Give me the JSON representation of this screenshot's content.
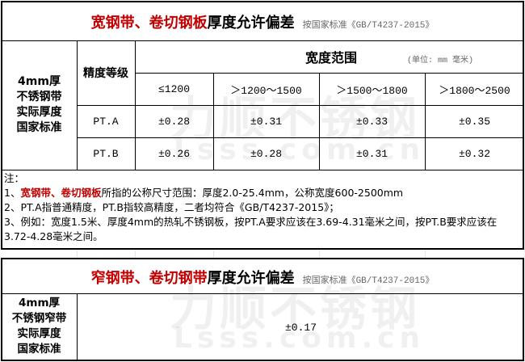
{
  "table1": {
    "title_red": "宽钢带、卷切钢板",
    "title_black": "厚度允许偏差",
    "standard": "按国家标准《GB/T4237-2015》",
    "left_label": [
      "4mm厚",
      "不锈钢带",
      "实际厚度",
      "国家标准"
    ],
    "grade_header": "精度等级",
    "width_header": "宽度范围",
    "unit": "(单位: mm 毫米)",
    "columns": [
      "≤1200",
      "＞1200～1500",
      "＞1500～1800",
      "＞1800～2500"
    ],
    "rows": [
      {
        "grade": "PT.A",
        "values": [
          "±0.28",
          "±0.31",
          "±0.33",
          "±0.35"
        ]
      },
      {
        "grade": "PT.B",
        "values": [
          "±0.26",
          "±0.28",
          "±0.31",
          "±0.32"
        ]
      }
    ]
  },
  "notes": {
    "heading": "注：",
    "n1_prefix": "1、",
    "n1_red": "宽钢带、卷切钢板",
    "n1_rest": "所指的公称尺寸范围：厚度2.0-25.4mm，公称宽度600-2500mm",
    "n2": "2、PT.A指普通精度，PT.B指较高精度，二者均符合《GB/T4237-2015》；",
    "n3": "3、例如：宽度1.5米、厚度4mm的热轧不锈钢板，按PT.A要求应该在3.69-4.31毫米之间，按PT.B要求应该在3.72-4.28毫米之间。"
  },
  "table2": {
    "title_red": "窄钢带、卷切钢带",
    "title_black": "厚度允许偏差",
    "standard": "按国家标准《GB/T4237-2015》",
    "left_label": [
      "4mm厚",
      "不锈钢窄带",
      "实际厚度",
      "国家标准"
    ],
    "value": "±0.17"
  },
  "watermark": {
    "cn": "力顺不锈钢",
    "url": "Lsss.com.cn"
  },
  "colors": {
    "accent_red": "#c00000",
    "standard_gray": "#666666"
  }
}
